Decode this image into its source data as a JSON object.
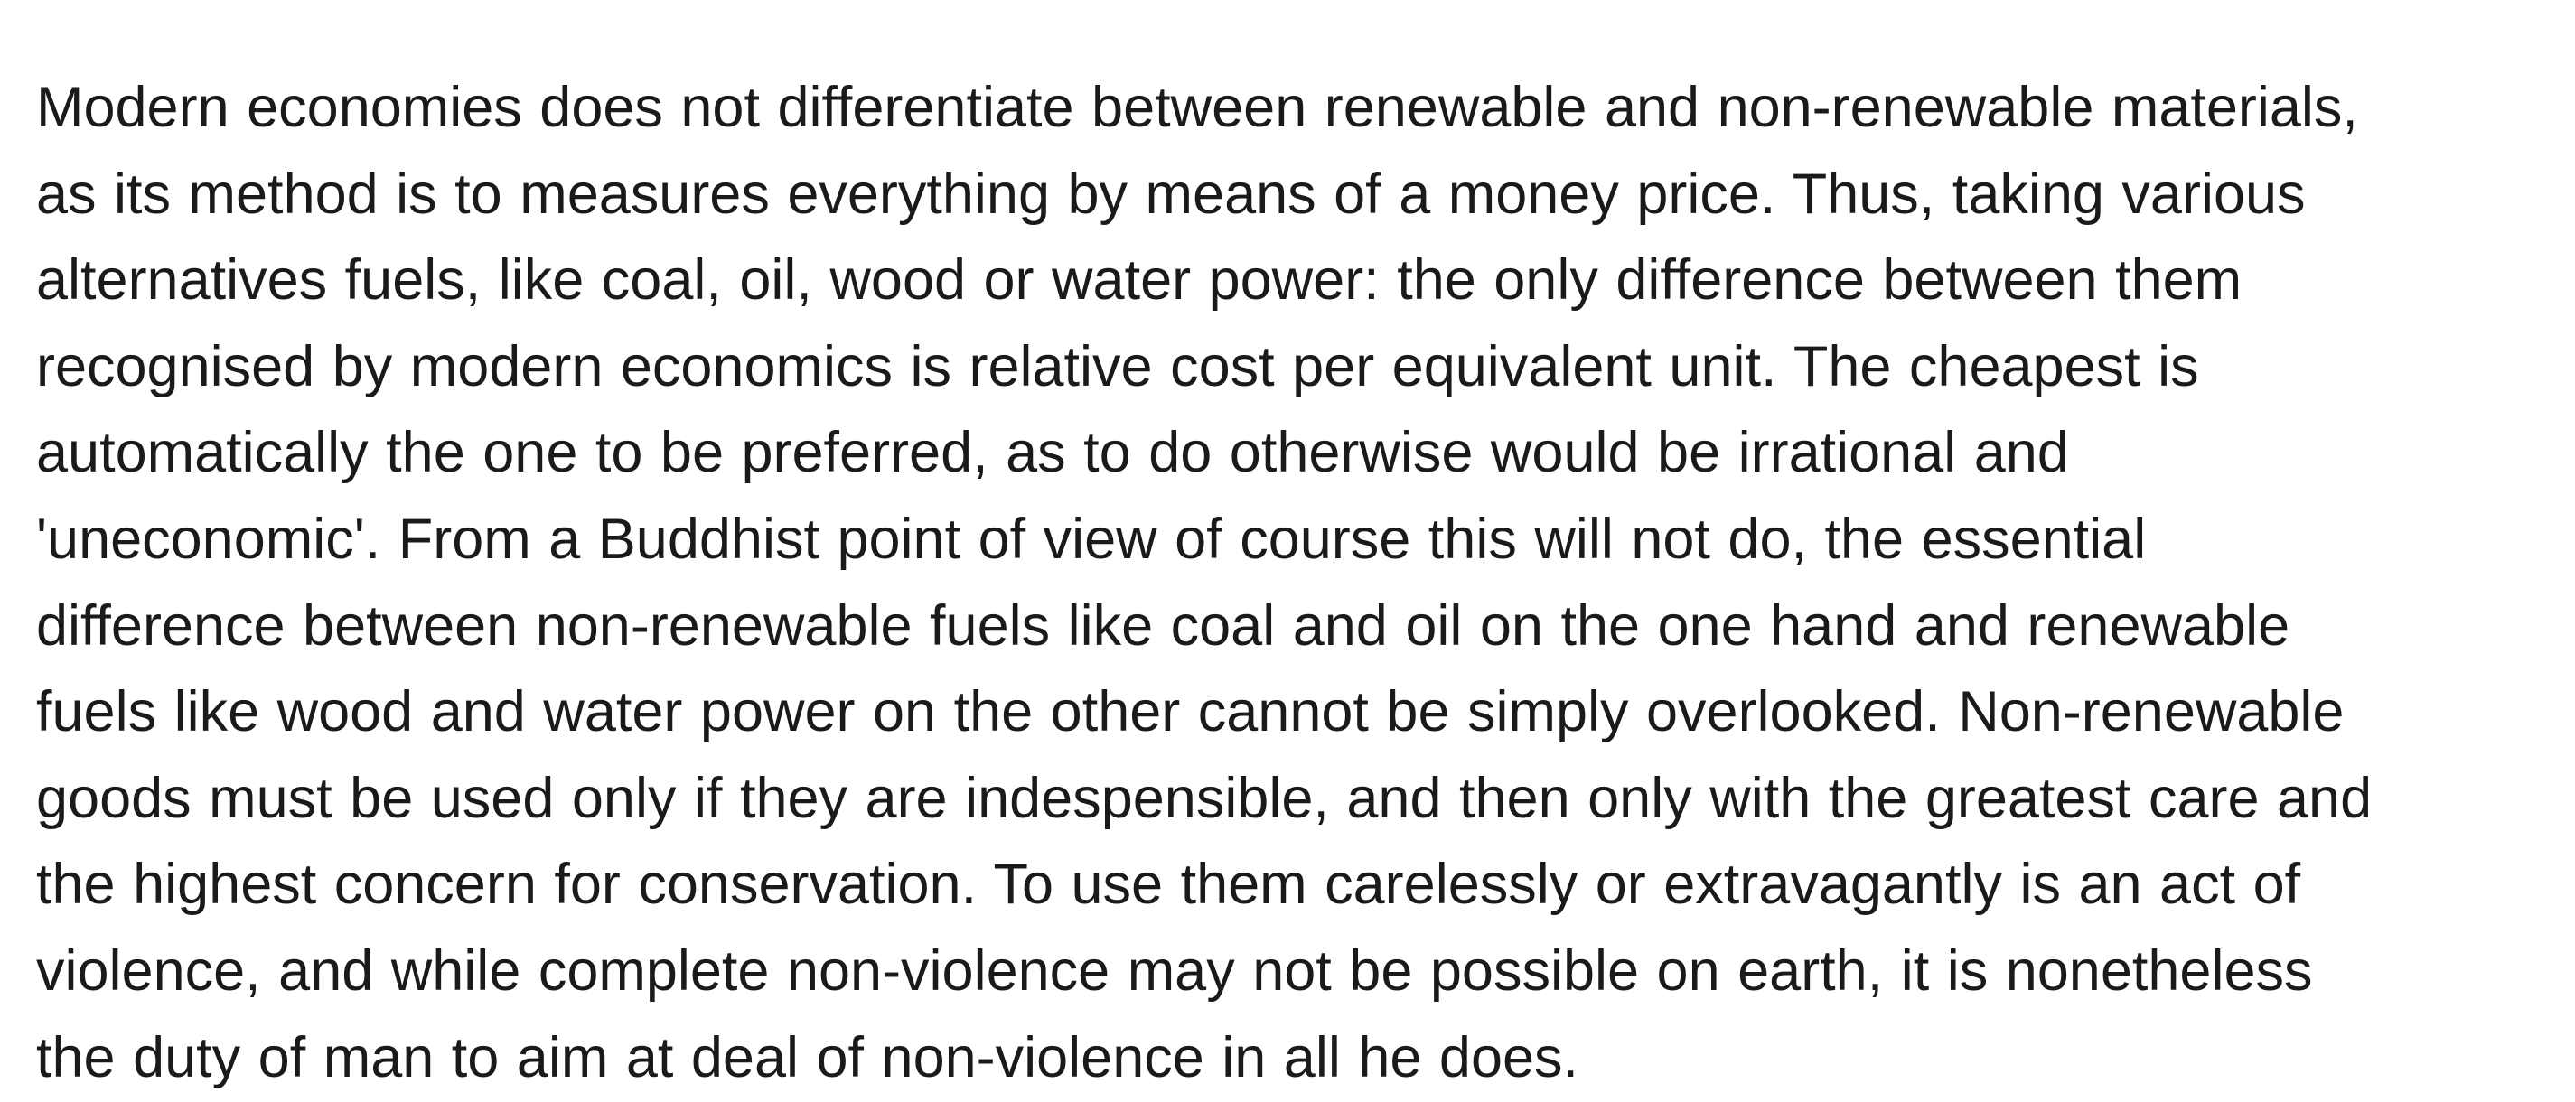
{
  "paragraph": {
    "lines": [
      "Modern economies does not differentiate between renewable and non-renewable materials,",
      "as its method is to measures everything by means of a money price. Thus, taking various",
      "alternatives fuels, like coal, oil, wood or water power: the only difference between them",
      "recognised by modern economics is relative cost per equivalent unit. The cheapest is",
      "automatically the one to be preferred, as to do otherwise would be irrational and",
      "'uneconomic'. From a Buddhist point of view of course this will not do, the essential",
      "difference between non-renewable fuels like coal and oil on the one hand and renewable",
      "fuels like wood and water power on the other cannot be simply overlooked. Non-renewable",
      "goods must be used only if they are indespensible, and then only with the greatest care and",
      "the highest concern for conservation. To use them carelessly or extravagantly is an act of",
      "violence, and while complete non-violence may not be possible on earth, it is nonetheless",
      "the duty of man to aim at deal of non-violence in all he does."
    ]
  }
}
